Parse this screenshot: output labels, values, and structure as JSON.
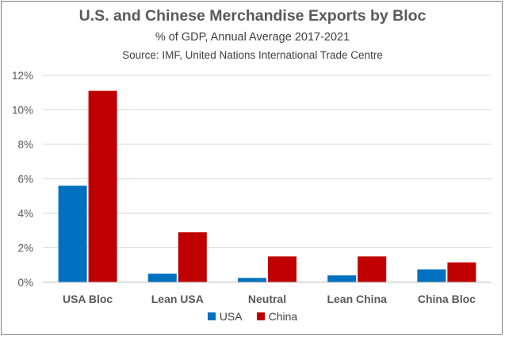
{
  "title": "U.S. and Chinese Merchandise Exports by Bloc",
  "subtitle": "% of GDP, Annual Average 2017-2021",
  "source": "Source:  IMF, United Nations International Trade Centre",
  "colors": {
    "usa": "#0070C0",
    "china": "#C00000",
    "grid": "#D9D9D9",
    "axis_text": "#595959"
  },
  "chart_data": {
    "type": "bar",
    "categories": [
      "USA Bloc",
      "Lean USA",
      "Neutral",
      "Lean China",
      "China Bloc"
    ],
    "series": [
      {
        "name": "USA",
        "values": [
          5.6,
          0.5,
          0.25,
          0.4,
          0.75
        ]
      },
      {
        "name": "China",
        "values": [
          11.1,
          2.9,
          1.5,
          1.5,
          1.15
        ]
      }
    ],
    "yticks": [
      "0%",
      "2%",
      "4%",
      "6%",
      "8%",
      "10%",
      "12%"
    ],
    "ylim": [
      0,
      12
    ],
    "grid": true,
    "legend_position": "bottom"
  }
}
